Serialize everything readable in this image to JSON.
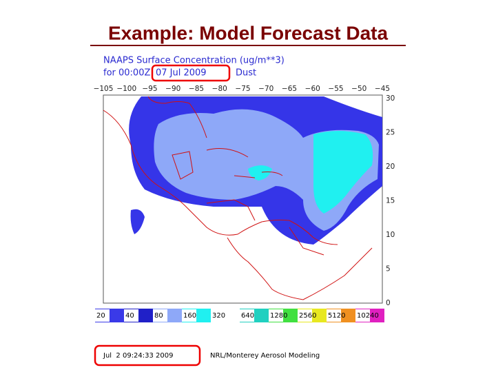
{
  "slide_title": "Example: Model Forecast Data",
  "map": {
    "header_line1": "NAAPS Surface Concentration (ug/m**3)",
    "header_for": "for 00:00Z",
    "header_date": "07 Jul 2009",
    "header_species": "Dust",
    "lon_labels": [
      "−105",
      "−100",
      "−95",
      "−90",
      "−85",
      "−80",
      "−75",
      "−70",
      "−65",
      "−60",
      "−55",
      "−50",
      "−45"
    ],
    "lat_labels": [
      "30",
      "25",
      "20",
      "15",
      "10",
      "5",
      "0"
    ]
  },
  "legend": {
    "labels": [
      "20",
      "40",
      "80",
      "160",
      "320",
      "640",
      "1280",
      "2560",
      "5120",
      "10240"
    ]
  },
  "footer": {
    "timestamp": "Jul  2 09:24:33 2009",
    "credit": "NRL/Monterey Aerosol Modeling"
  }
}
